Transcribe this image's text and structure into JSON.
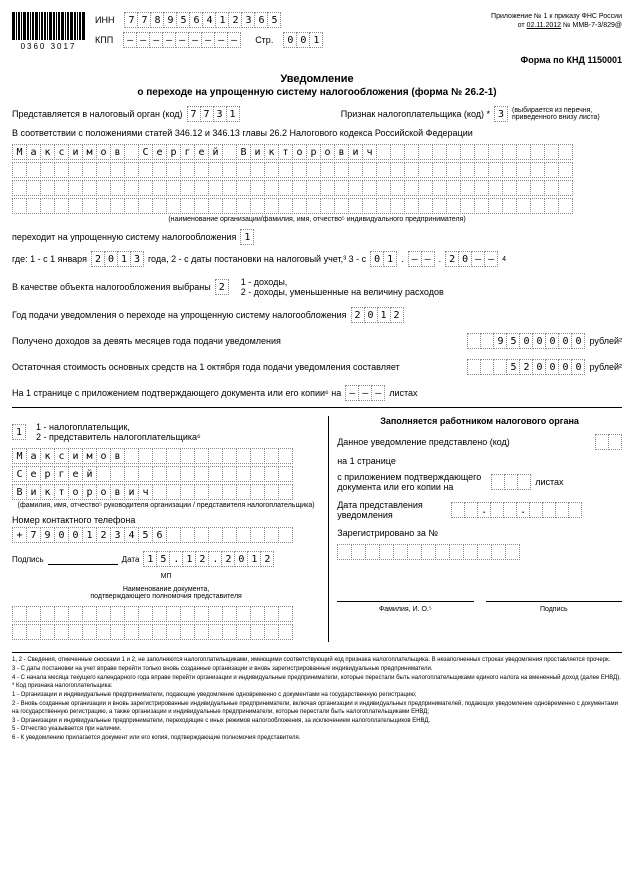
{
  "header": {
    "barcode_text": "0360 3017",
    "inn_label": "ИНН",
    "inn": [
      "7",
      "7",
      "8",
      "9",
      "5",
      "6",
      "4",
      "1",
      "2",
      "3",
      "6",
      "5"
    ],
    "kpp_label": "КПП",
    "kpp": [
      "–",
      "–",
      "–",
      "–",
      "–",
      "–",
      "–",
      "–",
      "–"
    ],
    "str_label": "Стр.",
    "str": [
      "0",
      "0",
      "1"
    ],
    "attachment_note_1": "Приложение № 1 к приказу ФНС России",
    "attachment_note_2": "от",
    "attachment_date": "02.11.2012",
    "attachment_no": "№ ММВ-7-3/829@"
  },
  "form_code": "Форма по КНД 1150001",
  "title": "Уведомление",
  "subtitle": "о переходе на упрощенную систему налогообложения (форма № 26.2-1)",
  "line1": {
    "text1": "Представляется в налоговый орган (код)",
    "code": [
      "7",
      "7",
      "3",
      "1"
    ],
    "text2": "Признак налогоплательщика (код) *",
    "val": [
      "3"
    ],
    "note": "(выбирается из перечня, приведенного внизу листа)"
  },
  "line2": "В соответствии с положениями статей 346.12 и 346.13 главы 26.2 Налогового кодекса Российской Федерации",
  "name_rows": [
    [
      "М",
      "а",
      "к",
      "с",
      "и",
      "м",
      "о",
      "в",
      "",
      "С",
      "е",
      "р",
      "г",
      "е",
      "й",
      "",
      "В",
      "и",
      "к",
      "т",
      "о",
      "р",
      "о",
      "в",
      "и",
      "ч",
      "",
      "",
      "",
      "",
      "",
      "",
      "",
      "",
      "",
      "",
      "",
      "",
      "",
      ""
    ],
    [
      "",
      "",
      "",
      "",
      "",
      "",
      "",
      "",
      "",
      "",
      "",
      "",
      "",
      "",
      "",
      "",
      "",
      "",
      "",
      "",
      "",
      "",
      "",
      "",
      "",
      "",
      "",
      "",
      "",
      "",
      "",
      "",
      "",
      "",
      "",
      "",
      "",
      "",
      "",
      ""
    ],
    [
      "",
      "",
      "",
      "",
      "",
      "",
      "",
      "",
      "",
      "",
      "",
      "",
      "",
      "",
      "",
      "",
      "",
      "",
      "",
      "",
      "",
      "",
      "",
      "",
      "",
      "",
      "",
      "",
      "",
      "",
      "",
      "",
      "",
      "",
      "",
      "",
      "",
      "",
      "",
      ""
    ],
    [
      "",
      "",
      "",
      "",
      "",
      "",
      "",
      "",
      "",
      "",
      "",
      "",
      "",
      "",
      "",
      "",
      "",
      "",
      "",
      "",
      "",
      "",
      "",
      "",
      "",
      "",
      "",
      "",
      "",
      "",
      "",
      "",
      "",
      "",
      "",
      "",
      "",
      "",
      "",
      ""
    ]
  ],
  "name_note": "(наименование организации/фамилия, имя, отчество⁵ индивидуального предпринимателя)",
  "transition": {
    "text1": "переходит на упрощенную систему налогообложения",
    "val": [
      "1"
    ],
    "text2": "где: 1 - с 1 января",
    "year": [
      "2",
      "0",
      "1",
      "3"
    ],
    "text3": "года,    2 - с даты постановки на налоговый учет,³    3 - с",
    "date_d": [
      "0",
      "1"
    ],
    "date_m": [
      "–",
      "–"
    ],
    "date_y": [
      "2",
      "0",
      "–",
      "–"
    ],
    "sup4": "4"
  },
  "object": {
    "text1": "В качестве объекта налогообложения выбраны",
    "val": [
      "2"
    ],
    "opts": "1 - доходы,\n2 - доходы, уменьшенные на величину расходов"
  },
  "year_notice": {
    "text": "Год подачи уведомления о переходе на упрощенную систему налогообложения",
    "val": [
      "2",
      "0",
      "1",
      "2"
    ]
  },
  "income": {
    "text": "Получено доходов за девять месяцев года подачи уведомления",
    "val": [
      "",
      "",
      "9",
      "5",
      "0",
      "0",
      "0",
      "0",
      "0"
    ],
    "unit": "рублей²"
  },
  "residual": {
    "text": "Остаточная стоимость основных средств на 1 октября года подачи уведомления составляет",
    "val": [
      "",
      "",
      "",
      "5",
      "2",
      "0",
      "0",
      "0",
      "0"
    ],
    "unit": "рублей²"
  },
  "pages": {
    "text1": "На 1 странице с приложением подтверждающего документа или его копии⁶ на",
    "val": [
      "–",
      "–",
      "–"
    ],
    "text2": "листах"
  },
  "left": {
    "role_val": [
      "1"
    ],
    "role_opts": "1 - налогоплательщик,\n2 - представитель налогоплательщика⁶",
    "fio_rows": [
      [
        "М",
        "а",
        "к",
        "с",
        "и",
        "м",
        "о",
        "в",
        "",
        "",
        "",
        "",
        "",
        "",
        "",
        "",
        "",
        "",
        "",
        ""
      ],
      [
        "С",
        "е",
        "р",
        "г",
        "е",
        "й",
        "",
        "",
        "",
        "",
        "",
        "",
        "",
        "",
        "",
        "",
        "",
        "",
        "",
        ""
      ],
      [
        "В",
        "и",
        "к",
        "т",
        "о",
        "р",
        "о",
        "в",
        "и",
        "ч",
        "",
        "",
        "",
        "",
        "",
        "",
        "",
        "",
        "",
        ""
      ]
    ],
    "fio_note": "(фамилия, имя, отчество⁵ руководителя организации / представителя налогоплательщика)",
    "phone_label": "Номер контактного телефона",
    "phone": [
      "+",
      "7",
      "9",
      "0",
      "0",
      "1",
      "2",
      "3",
      "4",
      "5",
      "6",
      "",
      "",
      "",
      "",
      "",
      "",
      "",
      "",
      ""
    ],
    "sig_label": "Подпись",
    "date_label": "Дата",
    "date": [
      "1",
      "5",
      ".",
      "1",
      "2",
      ".",
      "2",
      "0",
      "1",
      "2"
    ],
    "mp": "МП",
    "doc_title": "Наименование документа,\nподтверждающего полномочия представителя",
    "doc_rows": [
      [
        "",
        "",
        "",
        "",
        "",
        "",
        "",
        "",
        "",
        "",
        "",
        "",
        "",
        "",
        "",
        "",
        "",
        "",
        "",
        ""
      ],
      [
        "",
        "",
        "",
        "",
        "",
        "",
        "",
        "",
        "",
        "",
        "",
        "",
        "",
        "",
        "",
        "",
        "",
        "",
        "",
        ""
      ]
    ]
  },
  "right": {
    "title": "Заполняется работником налогового органа",
    "l1": "Данное уведомление представлено (код)",
    "code": [
      "",
      ""
    ],
    "l2": "на 1 странице",
    "l3": "с приложением подтверждающего документа или его копии на",
    "pages": [
      "",
      "",
      ""
    ],
    "l3b": "листах",
    "l4": "Дата представления уведомления",
    "date": [
      "",
      "",
      ".",
      "",
      "",
      ".",
      "",
      "",
      "",
      ""
    ],
    "l5": "Зарегистрировано за №",
    "reg": [
      "",
      "",
      "",
      "",
      "",
      "",
      "",
      "",
      "",
      "",
      "",
      "",
      ""
    ],
    "fio_label": "Фамилия, И. О.⁵",
    "sig_label": "Подпись"
  },
  "footnotes": [
    "1, 2 - Сведения, отмеченные сносками 1 и 2, не заполняются налогоплательщиками, имеющими соответствующий код признака налогоплательщика. В незаполненных строках уведомления проставляется прочерк.",
    "3 - С даты постановки на учет вправе перейти только вновь созданные организации и вновь зарегистрированные индивидуальные предприниматели.",
    "4 - С начала месяца текущего календарного года вправе перейти организации и индивидуальные предприниматели, которые перестали быть налогоплательщиками единого налога на вмененный доход (далее ЕНВД).",
    "* Код признака налогоплательщика:",
    "1 - Организации и индивидуальные предприниматели, подающие уведомление одновременно с документами на государственную регистрацию;",
    "2 - Вновь созданные организации и вновь зарегистрированные индивидуальные предприниматели, включая организации и индивидуальных предпринимателей, подающих уведомление одновременно с документами на государственную регистрацию, а также организации и индивидуальные предприниматели, которые перестали быть налогоплательщиками ЕНВД;",
    "3 - Организации и индивидуальные предприниматели, переходящие с иных режимов налогообложения, за исключением налогоплательщиков ЕНВД.",
    "5 - Отчество указывается при наличии.",
    "6 - К уведомлению прилагается документ или его копия, подтверждающие полномочия представителя."
  ]
}
